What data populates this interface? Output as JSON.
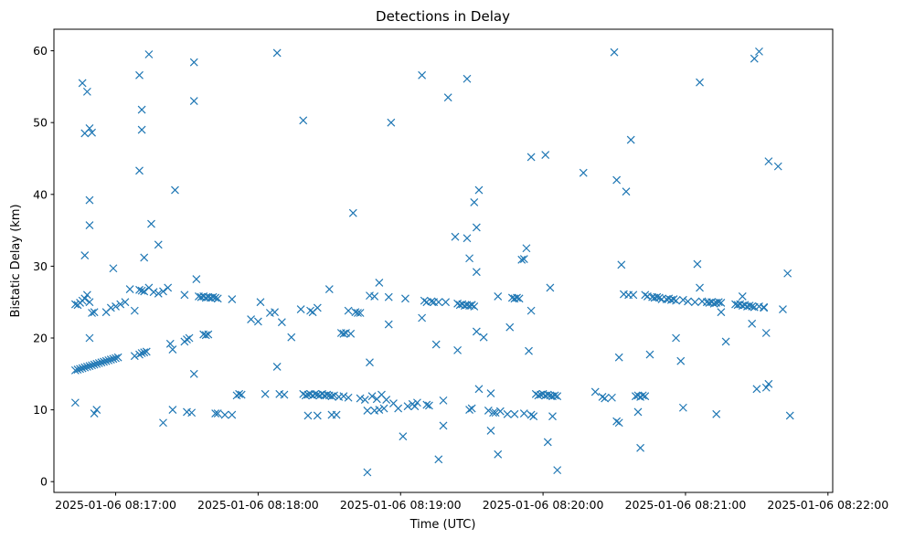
{
  "chart_data": {
    "type": "scatter",
    "title": "Detections in Delay",
    "xlabel": "Time (UTC)",
    "ylabel": "Bistatic Delay (km)",
    "marker": "x",
    "color": "#1f77b4",
    "xlim": [
      -9,
      319
    ],
    "ylim": [
      -1.5,
      63
    ],
    "x_unit": "seconds since 2025-01-06 08:16:43",
    "x_ticks": [
      {
        "value": 17,
        "label": "2025-01-06 08:17:00"
      },
      {
        "value": 77,
        "label": "2025-01-06 08:18:00"
      },
      {
        "value": 137,
        "label": "2025-01-06 08:19:00"
      },
      {
        "value": 197,
        "label": "2025-01-06 08:20:00"
      },
      {
        "value": 257,
        "label": "2025-01-06 08:21:00"
      },
      {
        "value": 317,
        "label": "2025-01-06 08:22:00"
      }
    ],
    "y_ticks": [
      {
        "value": 0,
        "label": "0"
      },
      {
        "value": 10,
        "label": "10"
      },
      {
        "value": 20,
        "label": "20"
      },
      {
        "value": 30,
        "label": "30"
      },
      {
        "value": 40,
        "label": "40"
      },
      {
        "value": 50,
        "label": "50"
      },
      {
        "value": 60,
        "label": "60"
      }
    ],
    "points": [
      [
        0,
        15.5
      ],
      [
        1,
        15.6
      ],
      [
        2,
        15.7
      ],
      [
        3,
        15.8
      ],
      [
        4,
        15.9
      ],
      [
        5,
        16.0
      ],
      [
        6,
        16.1
      ],
      [
        7,
        16.2
      ],
      [
        8,
        16.3
      ],
      [
        9,
        16.4
      ],
      [
        10,
        16.5
      ],
      [
        11,
        16.6
      ],
      [
        12,
        16.7
      ],
      [
        13,
        16.8
      ],
      [
        14,
        16.9
      ],
      [
        15,
        17.0
      ],
      [
        16,
        17.1
      ],
      [
        17,
        17.2
      ],
      [
        18,
        17.3
      ],
      [
        25,
        17.5
      ],
      [
        27,
        17.7
      ],
      [
        28,
        17.9
      ],
      [
        29,
        18.0
      ],
      [
        30,
        18.1
      ],
      [
        0,
        24.7
      ],
      [
        1,
        24.6
      ],
      [
        2,
        24.9
      ],
      [
        3,
        25.2
      ],
      [
        4,
        25.5
      ],
      [
        5,
        26.0
      ],
      [
        6,
        25.0
      ],
      [
        7,
        23.5
      ],
      [
        8,
        23.6
      ],
      [
        13,
        23.6
      ],
      [
        15,
        24.2
      ],
      [
        17,
        24.4
      ],
      [
        19,
        24.7
      ],
      [
        21,
        25.0
      ],
      [
        23,
        26.8
      ],
      [
        25,
        23.8
      ],
      [
        27,
        26.7
      ],
      [
        28,
        26.6
      ],
      [
        29,
        26.5
      ],
      [
        31,
        27.0
      ],
      [
        33,
        26.4
      ],
      [
        35,
        26.2
      ],
      [
        37,
        26.5
      ],
      [
        39,
        27.0
      ],
      [
        0,
        11.0
      ],
      [
        3,
        55.5
      ],
      [
        4,
        48.5
      ],
      [
        5,
        54.3
      ],
      [
        6,
        49.2
      ],
      [
        7,
        48.6
      ],
      [
        4,
        31.5
      ],
      [
        6,
        35.7
      ],
      [
        6,
        39.2
      ],
      [
        6,
        20.0
      ],
      [
        8,
        9.5
      ],
      [
        9,
        10.0
      ],
      [
        16,
        29.7
      ],
      [
        27,
        56.6
      ],
      [
        27,
        43.3
      ],
      [
        28,
        51.8
      ],
      [
        28,
        49.0
      ],
      [
        29,
        31.2
      ],
      [
        31,
        59.5
      ],
      [
        32,
        35.9
      ],
      [
        35,
        33.0
      ],
      [
        37,
        8.2
      ],
      [
        40,
        19.2
      ],
      [
        41,
        18.4
      ],
      [
        41,
        10.0
      ],
      [
        42,
        40.6
      ],
      [
        46,
        26.0
      ],
      [
        46,
        19.5
      ],
      [
        47,
        19.8
      ],
      [
        47,
        9.7
      ],
      [
        49,
        9.6
      ],
      [
        48,
        20.0
      ],
      [
        50,
        58.4
      ],
      [
        50,
        53.0
      ],
      [
        50,
        15.0
      ],
      [
        51,
        28.2
      ],
      [
        52,
        25.8
      ],
      [
        53,
        25.7
      ],
      [
        54,
        25.8
      ],
      [
        55,
        25.6
      ],
      [
        56,
        25.7
      ],
      [
        57,
        25.6
      ],
      [
        58,
        25.7
      ],
      [
        59,
        25.6
      ],
      [
        60,
        25.5
      ],
      [
        54,
        20.5
      ],
      [
        55,
        20.4
      ],
      [
        56,
        20.5
      ],
      [
        59,
        9.5
      ],
      [
        60,
        9.5
      ],
      [
        63,
        9.3
      ],
      [
        66,
        9.3
      ],
      [
        66,
        25.4
      ],
      [
        68,
        12.0
      ],
      [
        69,
        12.2
      ],
      [
        70,
        12.1
      ],
      [
        74,
        22.6
      ],
      [
        77,
        22.3
      ],
      [
        78,
        25.0
      ],
      [
        80,
        12.2
      ],
      [
        82,
        23.5
      ],
      [
        84,
        23.6
      ],
      [
        85,
        16.0
      ],
      [
        86,
        12.2
      ],
      [
        87,
        22.2
      ],
      [
        88,
        12.1
      ],
      [
        85,
        59.7
      ],
      [
        91,
        20.1
      ],
      [
        95,
        24.0
      ],
      [
        96,
        12.2
      ],
      [
        97,
        12.0
      ],
      [
        98,
        12.1
      ],
      [
        99,
        12.2
      ],
      [
        100,
        12.0
      ],
      [
        101,
        12.2
      ],
      [
        102,
        12.1
      ],
      [
        103,
        12.0
      ],
      [
        104,
        12.2
      ],
      [
        105,
        12.0
      ],
      [
        106,
        12.1
      ],
      [
        107,
        12.0
      ],
      [
        108,
        11.9
      ],
      [
        109,
        12.0
      ],
      [
        111,
        11.8
      ],
      [
        113,
        11.9
      ],
      [
        115,
        11.7
      ],
      [
        98,
        9.2
      ],
      [
        99,
        23.8
      ],
      [
        100,
        23.6
      ],
      [
        102,
        24.2
      ],
      [
        102,
        9.2
      ],
      [
        96,
        50.3
      ],
      [
        107,
        26.8
      ],
      [
        108,
        9.3
      ],
      [
        110,
        9.3
      ],
      [
        112,
        20.7
      ],
      [
        113,
        20.6
      ],
      [
        114,
        20.7
      ],
      [
        116,
        20.6
      ],
      [
        115,
        23.8
      ],
      [
        117,
        37.4
      ],
      [
        118,
        23.6
      ],
      [
        119,
        23.5
      ],
      [
        120,
        23.5
      ],
      [
        120,
        11.6
      ],
      [
        122,
        11.4
      ],
      [
        123,
        1.3
      ],
      [
        123,
        9.9
      ],
      [
        124,
        16.6
      ],
      [
        124,
        25.9
      ],
      [
        125,
        11.9
      ],
      [
        126,
        25.8
      ],
      [
        126,
        9.9
      ],
      [
        127,
        11.5
      ],
      [
        128,
        10.0
      ],
      [
        128,
        27.7
      ],
      [
        129,
        12.1
      ],
      [
        130,
        10.2
      ],
      [
        131,
        11.4
      ],
      [
        132,
        21.9
      ],
      [
        132,
        25.7
      ],
      [
        133,
        50.0
      ],
      [
        134,
        10.9
      ],
      [
        136,
        10.2
      ],
      [
        138,
        6.3
      ],
      [
        139,
        25.5
      ],
      [
        140,
        10.5
      ],
      [
        142,
        10.8
      ],
      [
        143,
        10.5
      ],
      [
        144,
        11.0
      ],
      [
        146,
        56.6
      ],
      [
        146,
        22.8
      ],
      [
        147,
        25.2
      ],
      [
        148,
        10.7
      ],
      [
        148,
        25.0
      ],
      [
        149,
        10.6
      ],
      [
        150,
        25.1
      ],
      [
        151,
        25.0
      ],
      [
        152,
        19.1
      ],
      [
        153,
        3.1
      ],
      [
        153,
        25.0
      ],
      [
        155,
        11.3
      ],
      [
        155,
        7.8
      ],
      [
        156,
        25.0
      ],
      [
        157,
        53.5
      ],
      [
        160,
        34.1
      ],
      [
        161,
        18.3
      ],
      [
        161,
        24.8
      ],
      [
        162,
        24.6
      ],
      [
        163,
        24.7
      ],
      [
        164,
        24.5
      ],
      [
        165,
        24.6
      ],
      [
        166,
        24.5
      ],
      [
        167,
        24.6
      ],
      [
        168,
        24.4
      ],
      [
        165,
        56.1
      ],
      [
        165,
        33.9
      ],
      [
        166,
        31.1
      ],
      [
        166,
        10.0
      ],
      [
        167,
        10.2
      ],
      [
        167,
        24.6
      ],
      [
        168,
        38.9
      ],
      [
        169,
        20.9
      ],
      [
        169,
        29.2
      ],
      [
        169,
        35.4
      ],
      [
        170,
        40.6
      ],
      [
        170,
        12.9
      ],
      [
        172,
        20.1
      ],
      [
        174,
        9.9
      ],
      [
        175,
        12.3
      ],
      [
        175,
        7.1
      ],
      [
        176,
        9.6
      ],
      [
        177,
        9.6
      ],
      [
        178,
        3.8
      ],
      [
        178,
        25.8
      ],
      [
        179,
        9.8
      ],
      [
        182,
        9.4
      ],
      [
        183,
        21.5
      ],
      [
        184,
        25.6
      ],
      [
        185,
        25.5
      ],
      [
        186,
        25.6
      ],
      [
        187,
        25.5
      ],
      [
        185,
        9.4
      ],
      [
        188,
        30.9
      ],
      [
        189,
        31.0
      ],
      [
        189,
        9.5
      ],
      [
        190,
        32.5
      ],
      [
        191,
        18.2
      ],
      [
        192,
        45.2
      ],
      [
        192,
        9.3
      ],
      [
        193,
        9.1
      ],
      [
        192,
        23.8
      ],
      [
        194,
        12.2
      ],
      [
        195,
        12.0
      ],
      [
        196,
        12.1
      ],
      [
        197,
        12.2
      ],
      [
        198,
        12.0
      ],
      [
        199,
        12.1
      ],
      [
        200,
        12.0
      ],
      [
        201,
        11.9
      ],
      [
        202,
        12.0
      ],
      [
        203,
        11.9
      ],
      [
        198,
        45.5
      ],
      [
        199,
        5.5
      ],
      [
        200,
        27.0
      ],
      [
        201,
        9.1
      ],
      [
        203,
        1.6
      ],
      [
        214,
        43.0
      ],
      [
        219,
        12.5
      ],
      [
        222,
        11.8
      ],
      [
        223,
        11.6
      ],
      [
        226,
        11.7
      ],
      [
        227,
        59.8
      ],
      [
        228,
        42.0
      ],
      [
        228,
        8.4
      ],
      [
        229,
        8.2
      ],
      [
        229,
        17.3
      ],
      [
        230,
        30.2
      ],
      [
        231,
        26.1
      ],
      [
        232,
        40.4
      ],
      [
        233,
        26.0
      ],
      [
        234,
        47.6
      ],
      [
        235,
        26.0
      ],
      [
        236,
        11.9
      ],
      [
        237,
        12.0
      ],
      [
        237,
        9.7
      ],
      [
        238,
        11.8
      ],
      [
        238,
        4.7
      ],
      [
        239,
        12.0
      ],
      [
        240,
        11.9
      ],
      [
        240,
        26.0
      ],
      [
        241,
        25.8
      ],
      [
        242,
        17.7
      ],
      [
        243,
        25.7
      ],
      [
        244,
        25.6
      ],
      [
        245,
        25.7
      ],
      [
        246,
        25.6
      ],
      [
        247,
        25.4
      ],
      [
        249,
        25.4
      ],
      [
        250,
        25.5
      ],
      [
        251,
        25.3
      ],
      [
        252,
        25.4
      ],
      [
        253,
        25.2
      ],
      [
        253,
        20.0
      ],
      [
        255,
        16.8
      ],
      [
        256,
        10.3
      ],
      [
        256,
        25.3
      ],
      [
        258,
        25.1
      ],
      [
        261,
        25.0
      ],
      [
        262,
        30.3
      ],
      [
        263,
        55.6
      ],
      [
        263,
        27.0
      ],
      [
        264,
        25.1
      ],
      [
        266,
        25.0
      ],
      [
        267,
        24.9
      ],
      [
        268,
        25.0
      ],
      [
        269,
        24.8
      ],
      [
        270,
        24.9
      ],
      [
        271,
        25.0
      ],
      [
        272,
        24.9
      ],
      [
        270,
        9.4
      ],
      [
        272,
        23.6
      ],
      [
        274,
        19.5
      ],
      [
        278,
        24.7
      ],
      [
        279,
        24.6
      ],
      [
        280,
        24.7
      ],
      [
        281,
        24.5
      ],
      [
        282,
        24.6
      ],
      [
        283,
        24.4
      ],
      [
        284,
        24.5
      ],
      [
        285,
        24.4
      ],
      [
        286,
        24.3
      ],
      [
        281,
        25.8
      ],
      [
        285,
        22.0
      ],
      [
        286,
        58.9
      ],
      [
        288,
        59.9
      ],
      [
        287,
        12.9
      ],
      [
        288,
        24.4
      ],
      [
        290,
        24.2
      ],
      [
        291,
        20.7
      ],
      [
        291,
        13.1
      ],
      [
        292,
        13.6
      ],
      [
        292,
        44.6
      ],
      [
        296,
        43.9
      ],
      [
        298,
        24.0
      ],
      [
        300,
        29.0
      ],
      [
        301,
        9.2
      ],
      [
        290,
        24.3
      ]
    ]
  }
}
